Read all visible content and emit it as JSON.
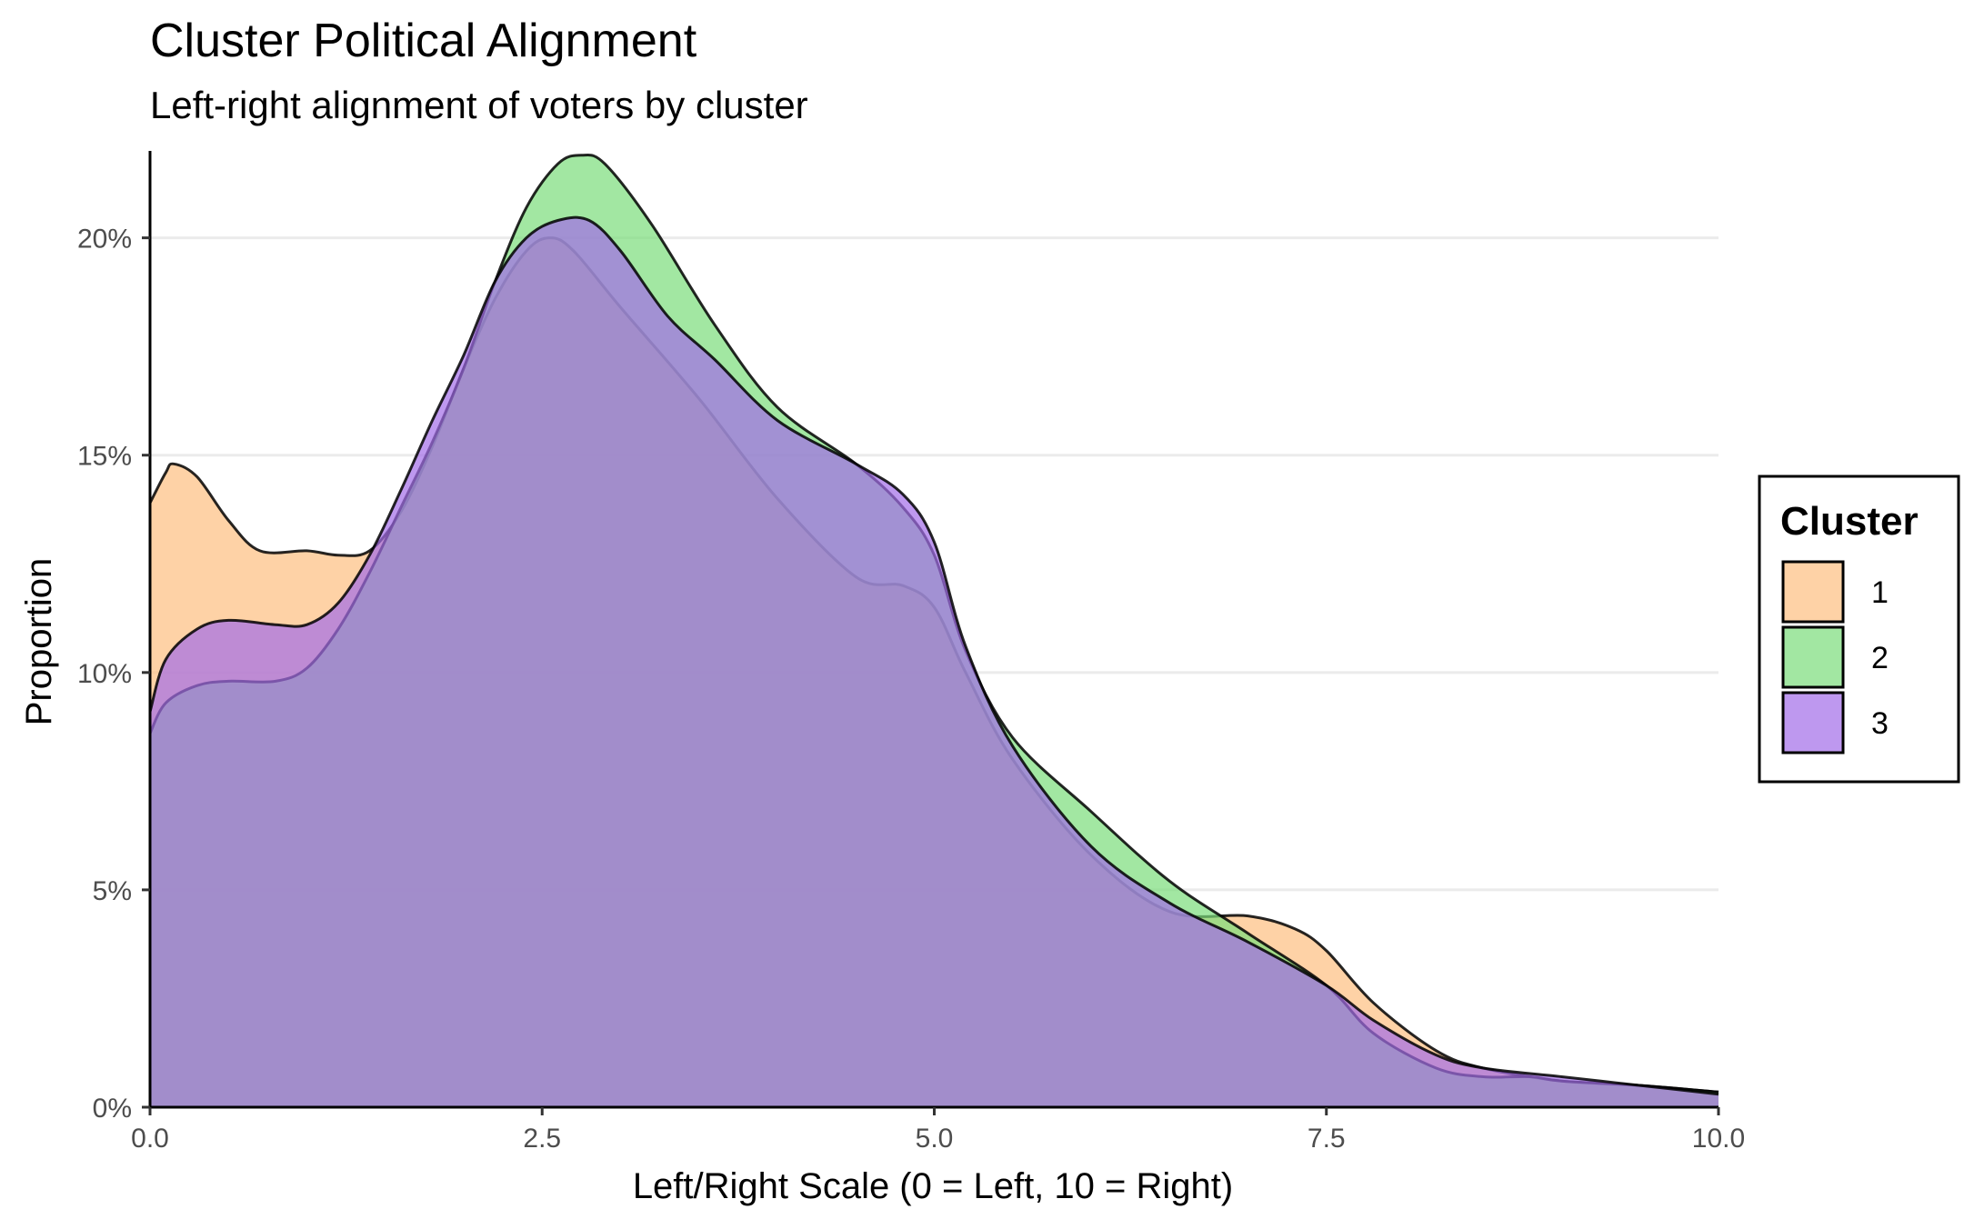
{
  "chart_data": {
    "type": "area",
    "subtype": "density",
    "title": "Cluster Political Alignment",
    "subtitle": "Left-right alignment of voters by cluster",
    "xlabel": "Left/Right Scale (0 = Left, 10 = Right)",
    "ylabel": "Proportion",
    "xlim": [
      0,
      10
    ],
    "ylim": [
      0,
      0.22
    ],
    "x_ticks": [
      0,
      2.5,
      5,
      7.5,
      10
    ],
    "x_tick_labels": [
      "0.0",
      "2.5",
      "5.0",
      "7.5",
      "10.0"
    ],
    "y_ticks": [
      0,
      0.05,
      0.1,
      0.15,
      0.2
    ],
    "y_tick_labels": [
      "0%",
      "5%",
      "10%",
      "15%",
      "20%"
    ],
    "grid": "horizontal major",
    "legend": {
      "title": "Cluster",
      "position": "right",
      "labels": [
        "1",
        "2",
        "3"
      ]
    },
    "series": [
      {
        "label": "1",
        "color": "#FDBF80",
        "x": [
          0,
          0.1,
          0.15,
          0.3,
          0.5,
          0.7,
          1.0,
          1.2,
          1.4,
          1.6,
          1.8,
          2.0,
          2.2,
          2.4,
          2.55,
          2.7,
          3.0,
          3.5,
          4.0,
          4.5,
          4.8,
          5.0,
          5.2,
          5.5,
          6.0,
          6.5,
          7.0,
          7.3,
          7.5,
          7.8,
          8.2,
          8.5,
          9.0,
          9.5,
          10.0
        ],
        "y": [
          0.139,
          0.146,
          0.148,
          0.145,
          0.135,
          0.128,
          0.128,
          0.127,
          0.128,
          0.137,
          0.152,
          0.17,
          0.186,
          0.197,
          0.2,
          0.197,
          0.184,
          0.163,
          0.14,
          0.122,
          0.12,
          0.115,
          0.1,
          0.08,
          0.058,
          0.045,
          0.044,
          0.041,
          0.036,
          0.024,
          0.013,
          0.009,
          0.006,
          0.005,
          0.0035
        ]
      },
      {
        "label": "2",
        "color": "#7BDD7B",
        "x": [
          0,
          0.1,
          0.3,
          0.5,
          0.8,
          1.0,
          1.2,
          1.4,
          1.6,
          1.8,
          2.0,
          2.2,
          2.4,
          2.6,
          2.75,
          2.9,
          3.2,
          3.6,
          4.0,
          4.5,
          4.8,
          5.0,
          5.2,
          5.5,
          6.0,
          6.5,
          7.0,
          7.5,
          7.8,
          8.2,
          8.5,
          8.8,
          9.0,
          9.5,
          10.0
        ],
        "y": [
          0.086,
          0.093,
          0.097,
          0.098,
          0.098,
          0.101,
          0.11,
          0.123,
          0.138,
          0.153,
          0.17,
          0.19,
          0.207,
          0.217,
          0.219,
          0.217,
          0.203,
          0.18,
          0.161,
          0.148,
          0.138,
          0.127,
          0.105,
          0.085,
          0.068,
          0.052,
          0.04,
          0.028,
          0.017,
          0.009,
          0.007,
          0.007,
          0.006,
          0.005,
          0.0035
        ]
      },
      {
        "label": "3",
        "color": "#A36CE8",
        "x": [
          0,
          0.1,
          0.3,
          0.5,
          0.8,
          1.0,
          1.2,
          1.4,
          1.6,
          1.8,
          2.0,
          2.2,
          2.4,
          2.6,
          2.8,
          3.0,
          3.3,
          3.6,
          4.0,
          4.5,
          4.8,
          5.0,
          5.2,
          5.5,
          6.0,
          6.5,
          7.0,
          7.5,
          7.8,
          8.2,
          8.5,
          9.0,
          9.5,
          10.0
        ],
        "y": [
          0.091,
          0.103,
          0.11,
          0.112,
          0.111,
          0.111,
          0.116,
          0.127,
          0.142,
          0.158,
          0.173,
          0.19,
          0.2,
          0.204,
          0.204,
          0.197,
          0.182,
          0.172,
          0.158,
          0.148,
          0.141,
          0.13,
          0.106,
          0.083,
          0.06,
          0.047,
          0.038,
          0.028,
          0.02,
          0.012,
          0.009,
          0.007,
          0.005,
          0.003
        ]
      }
    ]
  }
}
